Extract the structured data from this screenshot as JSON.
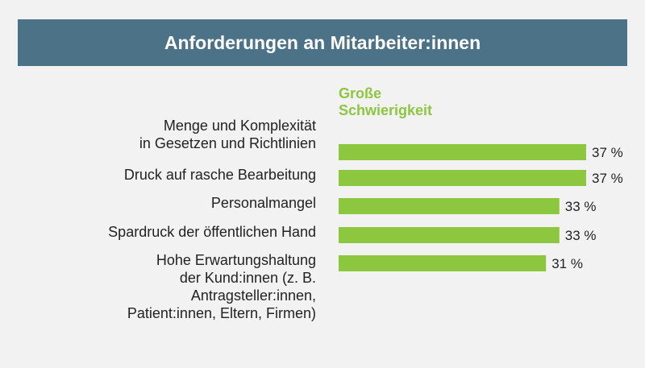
{
  "chart_data": {
    "type": "bar",
    "orientation": "horizontal",
    "title": "Anforderungen an Mitarbeiter:innen",
    "series": [
      {
        "name": "Große Schwierigkeit",
        "color": "#8dc63f",
        "values": [
          37,
          37,
          33,
          33,
          31
        ]
      }
    ],
    "categories": [
      [
        "Menge und Komplexität",
        "in Gesetzen und Richtlinien"
      ],
      [
        "Druck auf rasche Bearbeitung"
      ],
      [
        "Personalmangel"
      ],
      [
        "Spardruck der öffentlichen Hand"
      ],
      [
        "Hohe Erwartungshaltung",
        "der Kund:innen (z. B.",
        "Antragsteller:innen,",
        "Patient:innen, Eltern, Firmen)"
      ]
    ],
    "value_labels": [
      "37 %",
      "37 %",
      "33 %",
      "33 %",
      "31 %"
    ],
    "xlim": [
      0,
      37
    ],
    "legend": "top"
  },
  "colors": {
    "title_bar": "#4b7287",
    "bar": "#8dc63f",
    "background": "#f2f2f2"
  }
}
